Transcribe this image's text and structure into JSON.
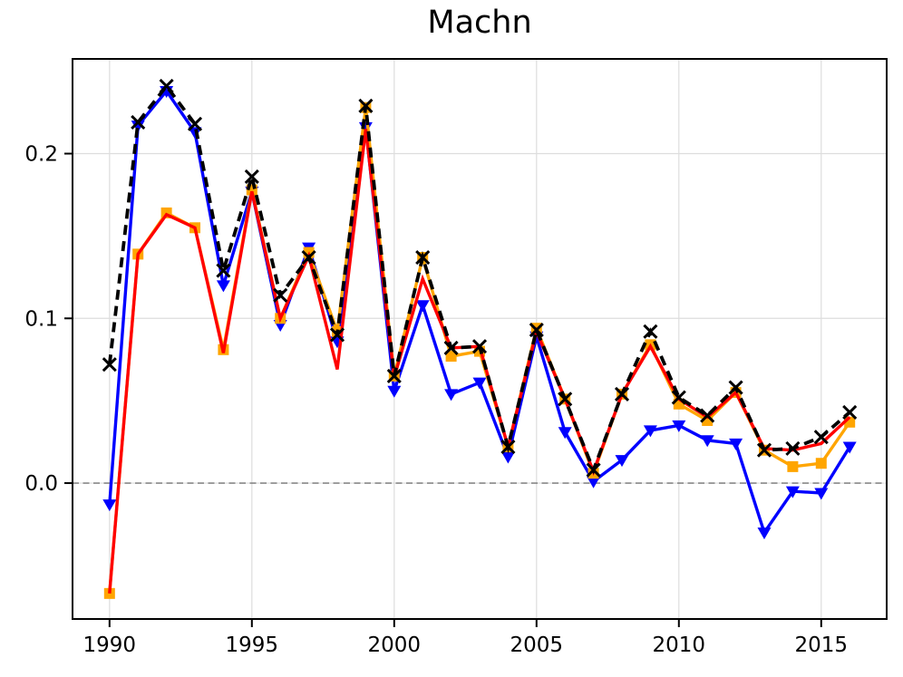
{
  "chart_data": {
    "type": "line",
    "title": "Machn",
    "xlabel": "",
    "ylabel": "",
    "x": [
      1990,
      1991,
      1992,
      1993,
      1994,
      1995,
      1996,
      1997,
      1998,
      1999,
      2000,
      2001,
      2002,
      2003,
      2004,
      2005,
      2006,
      2007,
      2008,
      2009,
      2010,
      2011,
      2012,
      2013,
      2014,
      2015,
      2016
    ],
    "series": [
      {
        "name": "blue-triangle-down",
        "color": "#0000ff",
        "line_style": "solid",
        "marker": "triangle-down",
        "values": [
          -0.013,
          0.217,
          0.238,
          0.213,
          0.12,
          0.177,
          0.096,
          0.143,
          0.086,
          0.216,
          0.056,
          0.108,
          0.054,
          0.061,
          0.016,
          0.089,
          0.031,
          0.001,
          0.014,
          0.032,
          0.035,
          0.026,
          0.024,
          -0.03,
          -0.005,
          -0.006,
          0.022
        ]
      },
      {
        "name": "orange-square",
        "color": "#ffa500",
        "line_style": "solid",
        "marker": "square",
        "values": [
          -0.067,
          0.139,
          0.164,
          0.155,
          0.081,
          0.178,
          0.1,
          0.14,
          0.092,
          0.228,
          0.065,
          0.137,
          0.077,
          0.08,
          0.022,
          0.094,
          0.051,
          0.006,
          0.054,
          0.084,
          0.048,
          0.038,
          0.055,
          0.02,
          0.01,
          0.012,
          0.037
        ]
      },
      {
        "name": "red-solid",
        "color": "#ff0000",
        "line_style": "solid",
        "marker": "none",
        "values": [
          -0.067,
          0.139,
          0.163,
          0.155,
          0.079,
          0.177,
          0.1,
          0.138,
          0.069,
          0.215,
          0.064,
          0.124,
          0.082,
          0.083,
          0.022,
          0.092,
          0.051,
          0.007,
          0.054,
          0.083,
          0.051,
          0.04,
          0.055,
          0.021,
          0.02,
          0.024,
          0.04
        ]
      },
      {
        "name": "black-dashed-x",
        "color": "#000000",
        "line_style": "dashed",
        "marker": "x",
        "values": [
          0.072,
          0.219,
          0.241,
          0.218,
          0.129,
          0.186,
          0.114,
          0.137,
          0.09,
          0.229,
          0.065,
          0.137,
          0.082,
          0.083,
          0.022,
          0.093,
          0.051,
          0.008,
          0.054,
          0.092,
          0.052,
          0.041,
          0.058,
          0.02,
          0.021,
          0.028,
          0.043
        ]
      }
    ],
    "xticks": [
      1990,
      1995,
      2000,
      2005,
      2010,
      2015
    ],
    "xtick_labels": [
      "1990",
      "1995",
      "2000",
      "2005",
      "2010",
      "2015"
    ],
    "yticks": [
      0.0,
      0.1,
      0.2
    ],
    "ytick_labels": [
      "0.0",
      "0.1",
      "0.2"
    ],
    "xlim": [
      1988.7,
      2017.3
    ],
    "ylim": [
      -0.0825,
      0.2575
    ],
    "grid": true,
    "grid_color": "#dddddd",
    "zero_line": true,
    "zero_line_color": "#888888",
    "legend": "none",
    "background_color": "#ffffff",
    "frame_color": "#000000"
  }
}
